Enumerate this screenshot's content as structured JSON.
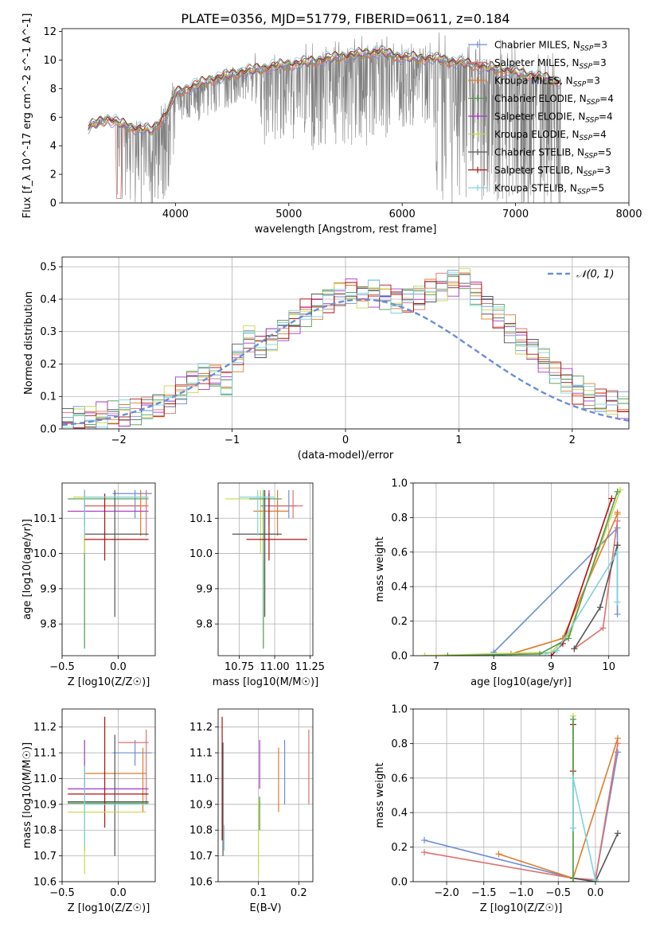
{
  "figure": {
    "title": "PLATE=0356, MJD=51779, FIBERID=0611, z=0.184"
  },
  "legend_entries": [
    {
      "name": "Chabrier MILES",
      "nssp": "3",
      "color": "#6b8ed6"
    },
    {
      "name": "Salpeter MILES",
      "nssp": "3",
      "color": "#e07070"
    },
    {
      "name": "Kroupa MILES",
      "nssp": "3",
      "color": "#e07b28"
    },
    {
      "name": "Chabrier ELODIE",
      "nssp": "4",
      "color": "#4f9a4f"
    },
    {
      "name": "Salpeter ELODIE",
      "nssp": "4",
      "color": "#a637c7"
    },
    {
      "name": "Kroupa ELODIE",
      "nssp": "4",
      "color": "#c8d84a"
    },
    {
      "name": "Chabrier STELIB",
      "nssp": "5",
      "color": "#555555"
    },
    {
      "name": "Salpeter STELIB",
      "nssp": "3",
      "color": "#b01010"
    },
    {
      "name": "Kroupa STELIB",
      "nssp": "5",
      "color": "#7fd3dd"
    }
  ],
  "chart_data": [
    {
      "id": "spectrum",
      "type": "line",
      "title": "PLATE=0356, MJD=51779, FIBERID=0611, z=0.184",
      "xlabel": "wavelength [Angstrom, rest frame]",
      "ylabel": "Flux [f_λ 10^-17 erg cm^-2 s^-1 A^-1]",
      "xlim": [
        3000,
        8000
      ],
      "ylim": [
        0,
        12.2
      ],
      "xticks": [
        "4000",
        "5000",
        "6000",
        "7000",
        "8000"
      ],
      "yticks": [
        "0",
        "2",
        "4",
        "6",
        "8",
        "10",
        "12"
      ],
      "data_color": "#808080",
      "data_range": [
        3230,
        7400
      ],
      "model_anchors": {
        "x": [
          3230,
          3400,
          3600,
          3800,
          3950,
          4000,
          4300,
          4600,
          4900,
          5200,
          5500,
          5800,
          6000,
          6300,
          6600,
          6900,
          7100,
          7400
        ],
        "y": [
          5.3,
          5.9,
          5.3,
          5.1,
          6.6,
          7.7,
          8.6,
          9.2,
          9.6,
          9.9,
          10.3,
          10.6,
          10.2,
          10.1,
          9.7,
          9.3,
          9.0,
          8.5
        ]
      }
    },
    {
      "id": "residuals",
      "type": "step",
      "xlabel": "(data-model)/error",
      "ylabel": "Normed distribution",
      "xlim": [
        -2.5,
        2.5
      ],
      "ylim": [
        0,
        0.53
      ],
      "xticks": [
        "−2",
        "−1",
        "0",
        "1",
        "2"
      ],
      "yticks": [
        "0.0",
        "0.1",
        "0.2",
        "0.3",
        "0.4",
        "0.5"
      ],
      "bin_width": 0.1,
      "bin_start": -2.5,
      "values": [
        0.02,
        0.03,
        0.035,
        0.04,
        0.045,
        0.045,
        0.05,
        0.06,
        0.07,
        0.09,
        0.12,
        0.15,
        0.16,
        0.16,
        0.14,
        0.22,
        0.28,
        0.26,
        0.28,
        0.3,
        0.33,
        0.36,
        0.38,
        0.4,
        0.42,
        0.43,
        0.41,
        0.42,
        0.41,
        0.4,
        0.4,
        0.41,
        0.43,
        0.44,
        0.45,
        0.46,
        0.42,
        0.38,
        0.35,
        0.31,
        0.27,
        0.24,
        0.21,
        0.18,
        0.15,
        0.12,
        0.1,
        0.085,
        0.08,
        0.07,
        0.06,
        0.055,
        0.05,
        0.045,
        0.04,
        0.03
      ],
      "reference_curve": {
        "label": "𝒩(0, 1)",
        "mean": 0.15,
        "sigma": 1.0,
        "color": "#6b8ed6"
      }
    },
    {
      "id": "z-age",
      "type": "errorbar",
      "xlabel": "Z [log10(Z/Z☉)]",
      "ylabel": "age [log10(age/yr)]",
      "xlim": [
        -0.5,
        0.33
      ],
      "ylim": [
        9.71,
        10.2
      ],
      "xticks": [
        "−0.5",
        "0.0"
      ],
      "yticks": [
        "9.8",
        "9.9",
        "10.0",
        "10.1"
      ]
    },
    {
      "id": "mass-age",
      "type": "errorbar",
      "xlabel": "mass [log10(M/M☉)]",
      "ylabel": "",
      "xlim": [
        10.6,
        11.27
      ],
      "ylim": [
        9.71,
        10.2
      ],
      "xticks": [
        "10.75",
        "11.00",
        "11.25"
      ],
      "yticks": [
        "9.8",
        "9.9",
        "10.0",
        "10.1"
      ]
    },
    {
      "id": "age-weight",
      "type": "line",
      "xlabel": "age [log10(age/yr)]",
      "ylabel": "mass weight",
      "xlim": [
        6.6,
        10.35
      ],
      "ylim": [
        0,
        1.0
      ],
      "xticks": [
        "7",
        "8",
        "9",
        "10"
      ],
      "yticks": [
        "0.0",
        "0.2",
        "0.4",
        "0.6",
        "0.8",
        "1.0"
      ],
      "series": [
        {
          "color": "#6b8ed6",
          "x": [
            8.0,
            10.15,
            10.15
          ],
          "y": [
            0.02,
            0.74,
            0.24
          ]
        },
        {
          "color": "#e07b28",
          "x": [
            8.3,
            9.2,
            10.15,
            10.15
          ],
          "y": [
            0.01,
            0.1,
            0.82,
            0.83
          ]
        },
        {
          "color": "#e07070",
          "x": [
            9.4,
            9.9,
            10.15
          ],
          "y": [
            0.04,
            0.16,
            0.78
          ]
        },
        {
          "color": "#c8d84a",
          "x": [
            6.8,
            9.0,
            9.3,
            10.2
          ],
          "y": [
            0.0,
            0.02,
            0.12,
            0.96
          ]
        },
        {
          "color": "#4f9a4f",
          "x": [
            7.2,
            8.8,
            9.3,
            10.15
          ],
          "y": [
            0.0,
            0.01,
            0.1,
            0.95
          ]
        },
        {
          "color": "#555555",
          "x": [
            9.4,
            9.85,
            10.15,
            10.15
          ],
          "y": [
            0.04,
            0.28,
            0.64,
            0.64
          ]
        },
        {
          "color": "#b01010",
          "x": [
            9.0,
            9.2,
            10.05
          ],
          "y": [
            0.0,
            0.07,
            0.91
          ]
        },
        {
          "color": "#7fd3dd",
          "x": [
            8.9,
            9.1,
            10.15,
            10.15
          ],
          "y": [
            0.01,
            0.03,
            0.6,
            0.31
          ]
        }
      ]
    },
    {
      "id": "z-mass",
      "type": "errorbar",
      "xlabel": "Z [log10(Z/Z☉)]",
      "ylabel": "mass [log10(M/M☉)]",
      "xlim": [
        -0.5,
        0.33
      ],
      "ylim": [
        10.6,
        11.27
      ],
      "xticks": [
        "−0.5",
        "0.0"
      ],
      "yticks": [
        "10.6",
        "10.7",
        "10.8",
        "10.9",
        "11.0",
        "11.1",
        "11.2"
      ]
    },
    {
      "id": "ebv-mass",
      "type": "errorbar",
      "xlabel": "E(B-V)",
      "ylabel": "",
      "xlim": [
        0.0,
        0.235
      ],
      "ylim": [
        10.6,
        11.27
      ],
      "xticks": [
        "0.1",
        "0.2"
      ],
      "yticks": [
        "10.6",
        "10.7",
        "10.8",
        "10.9",
        "11.0",
        "11.1",
        "11.2"
      ]
    },
    {
      "id": "z-weight",
      "type": "line",
      "xlabel": "Z [log10(Z/Z☉)]",
      "ylabel": "mass weight",
      "xlim": [
        -2.45,
        0.45
      ],
      "ylim": [
        0,
        1.0
      ],
      "xticks": [
        "−2.0",
        "−1.5",
        "−1.0",
        "−0.5",
        "0.0"
      ],
      "yticks": [
        "0.0",
        "0.2",
        "0.4",
        "0.6",
        "0.8",
        "1.0"
      ],
      "series": [
        {
          "color": "#6b8ed6",
          "x": [
            -2.3,
            -0.3,
            0.0,
            0.3
          ],
          "y": [
            0.24,
            0.02,
            0.01,
            0.75
          ]
        },
        {
          "color": "#e07070",
          "x": [
            -2.3,
            -0.3,
            0.0,
            0.3
          ],
          "y": [
            0.17,
            0.02,
            0.01,
            0.8
          ]
        },
        {
          "color": "#e07b28",
          "x": [
            -1.3,
            -0.3,
            0.3
          ],
          "y": [
            0.16,
            0.02,
            0.83
          ]
        },
        {
          "color": "#555555",
          "x": [
            -0.3,
            0.0,
            0.3
          ],
          "y": [
            0.02,
            0.0,
            0.28
          ]
        },
        {
          "color": "#b01010",
          "x": [
            -0.3,
            -0.3
          ],
          "y": [
            0.64,
            0.91
          ]
        },
        {
          "color": "#c8d84a",
          "x": [
            -0.3,
            -0.3
          ],
          "y": [
            0.0,
            0.96
          ]
        },
        {
          "color": "#4f9a4f",
          "x": [
            -0.3,
            -0.3
          ],
          "y": [
            0.0,
            0.94
          ]
        },
        {
          "color": "#7fd3dd",
          "x": [
            -0.3,
            -0.3,
            0.0
          ],
          "y": [
            0.31,
            0.6,
            0.01
          ]
        }
      ]
    }
  ],
  "errorbars": {
    "z-age": [
      {
        "color": "#6b8ed6",
        "xe": [
          -0.05,
          0.3
        ],
        "y": 10.17,
        "x": 0.15,
        "ye": [
          10.1,
          10.18
        ]
      },
      {
        "color": "#4f9a4f",
        "xe": [
          -0.45,
          0.27
        ],
        "y": 10.155,
        "x": -0.3,
        "ye": [
          9.73,
          10.18
        ]
      },
      {
        "color": "#c8d84a",
        "xe": [
          -0.4,
          0.25
        ],
        "y": 10.16,
        "x": -0.3,
        "ye": [
          10.0,
          10.18
        ]
      },
      {
        "color": "#e07b28",
        "xe": [
          -0.3,
          0.27
        ],
        "y": 10.135,
        "x": 0.2,
        "ye": [
          10.05,
          10.18
        ]
      },
      {
        "color": "#a637c7",
        "xe": [
          -0.45,
          0.27
        ],
        "y": 10.12,
        "x": -0.3,
        "ye": [
          10.08,
          10.18
        ]
      },
      {
        "color": "#e07070",
        "xe": [
          -0.3,
          0.25
        ],
        "y": 10.135,
        "x": 0.25,
        "ye": [
          10.05,
          10.18
        ]
      },
      {
        "color": "#555555",
        "xe": [
          -0.3,
          0.27
        ],
        "y": 10.055,
        "x": -0.03,
        "ye": [
          9.82,
          10.18
        ]
      },
      {
        "color": "#b01010",
        "xe": [
          -0.3,
          0.27
        ],
        "y": 10.04,
        "x": -0.12,
        "ye": [
          9.98,
          10.17
        ]
      },
      {
        "color": "#7fd3dd",
        "xe": [
          -0.3,
          0.27
        ],
        "y": 10.16,
        "x": -0.3,
        "ye": [
          10.05,
          10.18
        ]
      }
    ],
    "mass-age": [
      {
        "color": "#c8d84a",
        "xe": [
          10.65,
          10.95
        ],
        "y": 10.155,
        "x": 10.9,
        "ye": [
          10.0,
          10.18
        ]
      },
      {
        "color": "#4f9a4f",
        "xe": [
          10.82,
          11.05
        ],
        "y": 10.155,
        "x": 10.92,
        "ye": [
          9.73,
          10.18
        ]
      },
      {
        "color": "#a637c7",
        "xe": [
          10.85,
          11.1
        ],
        "y": 10.12,
        "x": 10.96,
        "ye": [
          10.08,
          10.18
        ]
      },
      {
        "color": "#6b8ed6",
        "xe": [
          10.9,
          11.15
        ],
        "y": 10.135,
        "x": 11.1,
        "ye": [
          10.1,
          10.18
        ]
      },
      {
        "color": "#e07070",
        "xe": [
          10.95,
          11.2
        ],
        "y": 10.135,
        "x": 11.13,
        "ye": [
          10.1,
          10.18
        ]
      },
      {
        "color": "#e07b28",
        "xe": [
          10.85,
          11.1
        ],
        "y": 10.12,
        "x": 11.02,
        "ye": [
          10.05,
          10.18
        ]
      },
      {
        "color": "#555555",
        "xe": [
          10.7,
          11.05
        ],
        "y": 10.055,
        "x": 10.93,
        "ye": [
          9.82,
          10.18
        ]
      },
      {
        "color": "#b01010",
        "xe": [
          10.8,
          11.23
        ],
        "y": 10.04,
        "x": 10.96,
        "ye": [
          9.98,
          10.17
        ]
      },
      {
        "color": "#7fd3dd",
        "xe": [
          10.75,
          11.0
        ],
        "y": 10.16,
        "x": 10.88,
        "ye": [
          10.05,
          10.18
        ]
      }
    ],
    "z-mass": [
      {
        "color": "#6b8ed6",
        "xe": [
          -0.05,
          0.3
        ],
        "y": 11.1,
        "x": 0.15,
        "ye": [
          11.05,
          11.15
        ]
      },
      {
        "color": "#e07070",
        "xe": [
          0.0,
          0.27
        ],
        "y": 11.14,
        "x": 0.25,
        "ye": [
          10.9,
          11.19
        ]
      },
      {
        "color": "#e07b28",
        "xe": [
          -0.3,
          0.25
        ],
        "y": 11.02,
        "x": 0.22,
        "ye": [
          10.87,
          11.12
        ]
      },
      {
        "color": "#a637c7",
        "xe": [
          -0.45,
          0.27
        ],
        "y": 10.96,
        "x": -0.3,
        "ye": [
          10.95,
          11.15
        ]
      },
      {
        "color": "#555555",
        "xe": [
          -0.45,
          0.27
        ],
        "y": 10.91,
        "x": -0.03,
        "ye": [
          10.7,
          11.17
        ]
      },
      {
        "color": "#4f9a4f",
        "xe": [
          -0.45,
          0.27
        ],
        "y": 10.905,
        "x": -0.3,
        "ye": [
          10.72,
          11.05
        ]
      },
      {
        "color": "#b01010",
        "xe": [
          -0.45,
          0.27
        ],
        "y": 10.94,
        "x": -0.12,
        "ye": [
          10.81,
          11.24
        ]
      },
      {
        "color": "#c8d84a",
        "xe": [
          -0.45,
          0.25
        ],
        "y": 10.87,
        "x": -0.3,
        "ye": [
          10.63,
          10.92
        ]
      },
      {
        "color": "#7fd3dd",
        "xe": [
          -0.3,
          0.27
        ],
        "y": 10.9,
        "x": -0.3,
        "ye": [
          10.74,
          11.05
        ]
      }
    ],
    "ebv-mass": [
      {
        "color": "#b01010",
        "x": 0.01,
        "ye": [
          10.76,
          11.24
        ]
      },
      {
        "color": "#555555",
        "x": 0.012,
        "ye": [
          10.7,
          11.14
        ]
      },
      {
        "color": "#7fd3dd",
        "x": 0.015,
        "ye": [
          10.72,
          10.82
        ]
      },
      {
        "color": "#c8d84a",
        "x": 0.1,
        "ye": [
          10.62,
          10.92
        ]
      },
      {
        "color": "#a637c7",
        "x": 0.103,
        "ye": [
          10.96,
          11.15
        ]
      },
      {
        "color": "#4f9a4f",
        "x": 0.103,
        "ye": [
          10.8,
          10.93
        ]
      },
      {
        "color": "#e07b28",
        "x": 0.15,
        "ye": [
          10.87,
          11.12
        ]
      },
      {
        "color": "#6b8ed6",
        "x": 0.165,
        "ye": [
          10.9,
          11.15
        ]
      },
      {
        "color": "#e07070",
        "x": 0.225,
        "ye": [
          10.9,
          11.19
        ]
      }
    ]
  }
}
